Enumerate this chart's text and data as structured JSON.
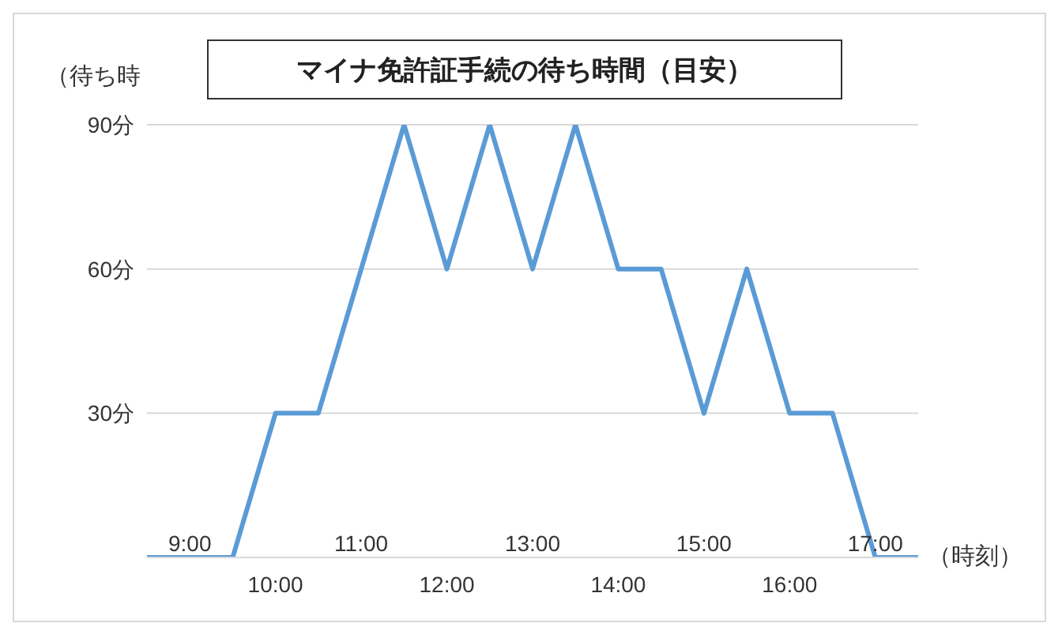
{
  "chart_data": {
    "type": "line",
    "title": "マイナ免許証手続の待ち時間（目安）",
    "ylabel": "（待ち時",
    "xlabel": "（時刻）",
    "categories": [
      null,
      "9:00",
      null,
      "10:00",
      null,
      "11:00",
      null,
      "12:00",
      null,
      "13:00",
      null,
      "14:00",
      null,
      "15:00",
      null,
      "16:00",
      null,
      "17:00",
      null
    ],
    "series": [
      {
        "color": "#5b9bd5",
        "values": [
          0,
          0,
          0,
          30,
          30,
          60,
          90,
          60,
          90,
          60,
          90,
          60,
          60,
          30,
          60,
          30,
          30,
          0,
          0
        ]
      }
    ],
    "ylim": [
      0,
      90
    ],
    "yticks": [
      {
        "value": 0,
        "label": null
      },
      {
        "value": 30,
        "label": "30分"
      },
      {
        "value": 60,
        "label": "60分"
      },
      {
        "value": 90,
        "label": "90分"
      }
    ],
    "grid": "y",
    "legend": false,
    "marker": "none",
    "line_style": "solid"
  }
}
